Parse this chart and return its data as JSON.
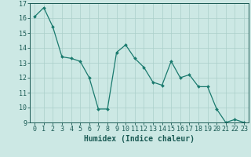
{
  "x": [
    0,
    1,
    2,
    3,
    4,
    5,
    6,
    7,
    8,
    9,
    10,
    11,
    12,
    13,
    14,
    15,
    16,
    17,
    18,
    19,
    20,
    21,
    22,
    23
  ],
  "y": [
    16.1,
    16.7,
    15.4,
    13.4,
    13.3,
    13.1,
    12.0,
    9.9,
    9.9,
    13.7,
    14.2,
    13.3,
    12.7,
    11.7,
    11.5,
    13.1,
    12.0,
    12.2,
    11.4,
    11.4,
    9.9,
    9.0,
    9.2,
    9.0
  ],
  "line_color": "#1a7a6e",
  "marker": "D",
  "marker_size": 2.0,
  "bg_color": "#cce8e4",
  "grid_color": "#aacfca",
  "xlabel": "Humidex (Indice chaleur)",
  "xlim": [
    -0.5,
    23.5
  ],
  "ylim": [
    9,
    17
  ],
  "yticks": [
    9,
    10,
    11,
    12,
    13,
    14,
    15,
    16,
    17
  ],
  "xticks": [
    0,
    1,
    2,
    3,
    4,
    5,
    6,
    7,
    8,
    9,
    10,
    11,
    12,
    13,
    14,
    15,
    16,
    17,
    18,
    19,
    20,
    21,
    22,
    23
  ],
  "tick_color": "#1a5a54",
  "label_fontsize": 6,
  "xlabel_fontsize": 7,
  "axis_color": "#1a5a54"
}
